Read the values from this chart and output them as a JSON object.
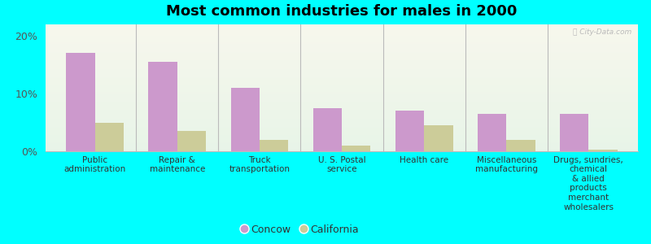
{
  "title": "Most common industries for males in 2000",
  "categories": [
    "Public\nadministration",
    "Repair &\nmaintenance",
    "Truck\ntransportation",
    "U. S. Postal\nservice",
    "Health care",
    "Miscellaneous\nmanufacturing",
    "Drugs, sundries,\nchemical\n& allied\nproducts\nmerchant\nwholesalers"
  ],
  "concow_values": [
    17.0,
    15.5,
    11.0,
    7.5,
    7.0,
    6.5,
    6.5
  ],
  "california_values": [
    5.0,
    3.5,
    2.0,
    1.0,
    4.5,
    2.0,
    0.3
  ],
  "concow_color": "#cc99cc",
  "california_color": "#cccc99",
  "background_color": "#00ffff",
  "yticks": [
    0,
    10,
    20
  ],
  "ylim": [
    0,
    22
  ],
  "bar_width": 0.35,
  "title_fontsize": 13,
  "legend_concow": "Concow",
  "legend_california": "California",
  "separator_color": "#bbbbbb",
  "spine_color": "#bbbbbb",
  "label_fontsize": 7.5,
  "tick_fontsize": 9
}
